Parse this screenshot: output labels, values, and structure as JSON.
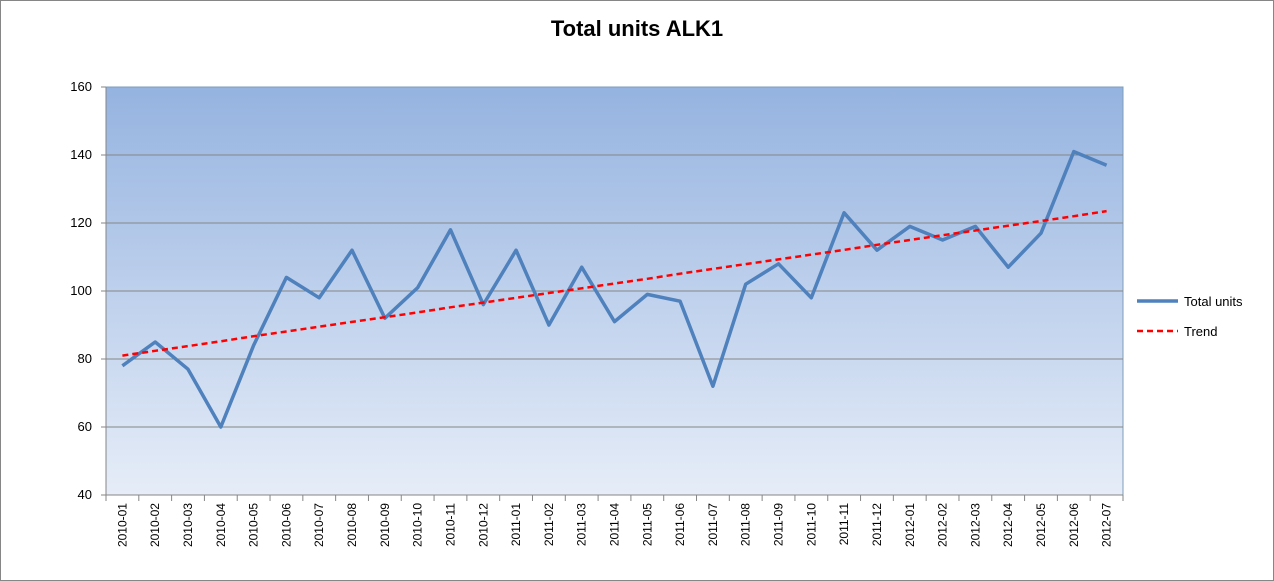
{
  "chart_data": {
    "type": "line",
    "title": "Total units ALK1",
    "xlabel": "",
    "ylabel": "",
    "ylim": [
      40,
      160
    ],
    "yticks": [
      40,
      60,
      80,
      100,
      120,
      140,
      160
    ],
    "grid": true,
    "legend_position": "right",
    "categories": [
      "2010-01",
      "2010-02",
      "2010-03",
      "2010-04",
      "2010-05",
      "2010-06",
      "2010-07",
      "2010-08",
      "2010-09",
      "2010-10",
      "2010-11",
      "2010-12",
      "2011-01",
      "2011-02",
      "2011-03",
      "2011-04",
      "2011-05",
      "2011-06",
      "2011-07",
      "2011-08",
      "2011-09",
      "2011-10",
      "2011-11",
      "2011-12",
      "2012-01",
      "2012-02",
      "2012-03",
      "2012-04",
      "2012-05",
      "2012-06",
      "2012-07"
    ],
    "series": [
      {
        "name": "Total units",
        "color": "#4F81BD",
        "style": "solid",
        "values": [
          78,
          85,
          77,
          60,
          84,
          104,
          98,
          112,
          92,
          101,
          118,
          96,
          112,
          90,
          107,
          91,
          99,
          97,
          72,
          102,
          108,
          98,
          123,
          112,
          119,
          115,
          119,
          107,
          117,
          141,
          137
        ]
      },
      {
        "name": "Trend",
        "color": "#FF0000",
        "style": "dashed",
        "values": [
          81.0,
          82.4,
          83.8,
          85.2,
          86.7,
          88.1,
          89.5,
          90.9,
          92.3,
          93.7,
          95.2,
          96.6,
          98.0,
          99.4,
          100.8,
          102.2,
          103.6,
          105.1,
          106.5,
          107.9,
          109.3,
          110.7,
          112.1,
          113.6,
          115.0,
          116.4,
          117.8,
          119.2,
          120.6,
          122.0,
          123.5
        ]
      }
    ]
  }
}
